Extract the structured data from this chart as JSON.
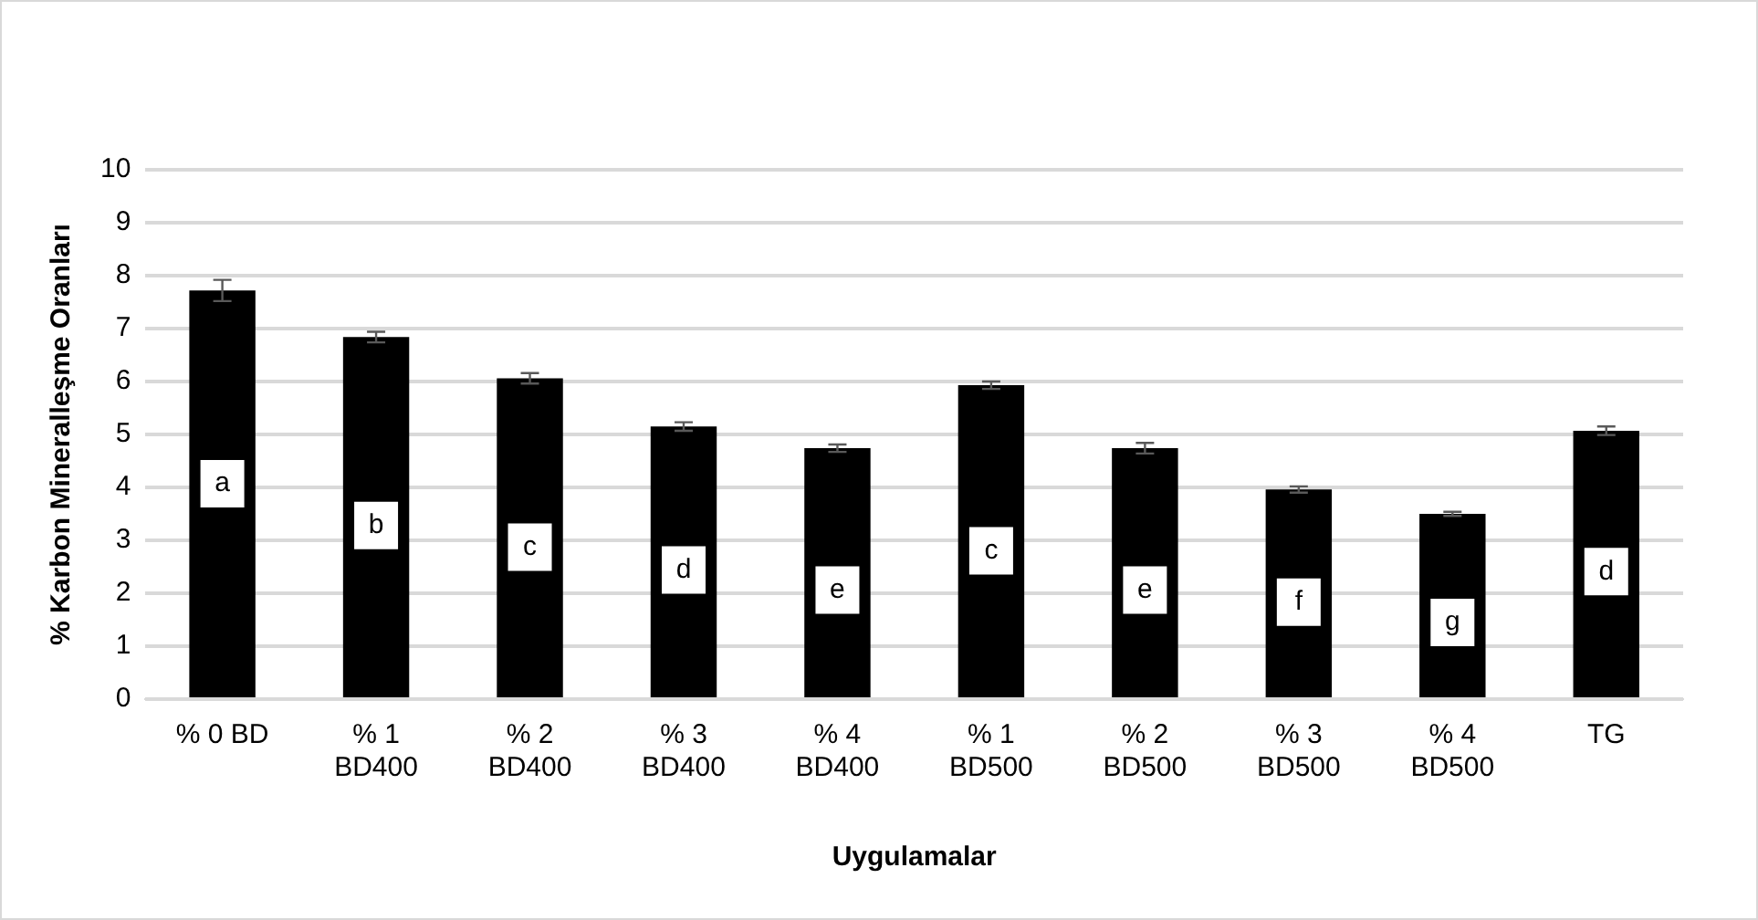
{
  "chart_data": {
    "type": "bar",
    "xlabel": "Uygulamalar",
    "ylabel": "% Karbon Mineralleşme Oranları",
    "categories": [
      "% 0 BD",
      "% 1\nBD400",
      "% 2\nBD400",
      "% 3\nBD400",
      "% 4\nBD400",
      "% 1\nBD500",
      "% 2\nBD500",
      "% 3\nBD500",
      "% 4\nBD500",
      "TG"
    ],
    "values": [
      7.72,
      6.84,
      6.06,
      5.15,
      4.74,
      5.93,
      4.74,
      3.96,
      3.5,
      5.07
    ],
    "errors": [
      0.2,
      0.1,
      0.1,
      0.08,
      0.07,
      0.07,
      0.1,
      0.06,
      0.04,
      0.08
    ],
    "color": "#000000",
    "ylim": [
      0,
      10
    ],
    "yticks": [
      0,
      1,
      2,
      3,
      4,
      5,
      6,
      7,
      8,
      9,
      10
    ],
    "grid": "y",
    "legend": false,
    "annotations": [
      {
        "text": "a",
        "x": "% 0 BD",
        "y": 4.07
      },
      {
        "text": "b",
        "x": "% 1\nBD400",
        "y": 3.28
      },
      {
        "text": "c",
        "x": "% 2\nBD400",
        "y": 2.87
      },
      {
        "text": "d",
        "x": "% 3\nBD400",
        "y": 2.44
      },
      {
        "text": "e",
        "x": "% 4\nBD400",
        "y": 2.06
      },
      {
        "text": "c",
        "x": "% 1\nBD500",
        "y": 2.8
      },
      {
        "text": "e",
        "x": "% 2\nBD500",
        "y": 2.06
      },
      {
        "text": "f",
        "x": "% 3\nBD500",
        "y": 1.83
      },
      {
        "text": "g",
        "x": "% 4\nBD500",
        "y": 1.45
      },
      {
        "text": "d",
        "x": "TG",
        "y": 2.41
      }
    ]
  }
}
